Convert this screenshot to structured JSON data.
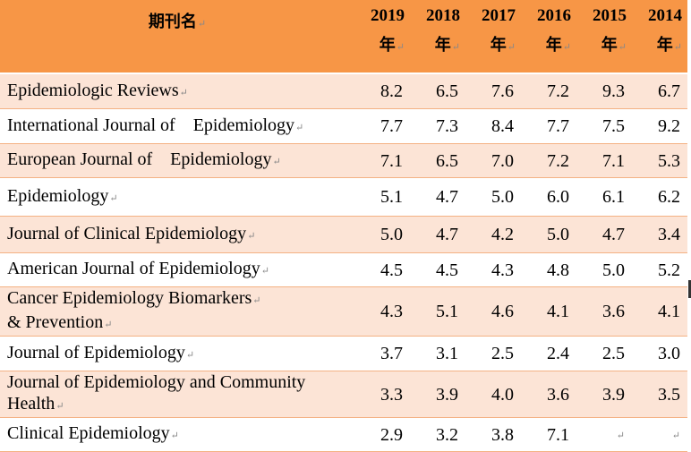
{
  "table": {
    "header": {
      "journal": "期刊名",
      "years": [
        {
          "year": "2019",
          "unit": "年"
        },
        {
          "year": "2018",
          "unit": "年"
        },
        {
          "year": "2017",
          "unit": "年"
        },
        {
          "year": "2016",
          "unit": "年"
        },
        {
          "year": "2015",
          "unit": "年"
        },
        {
          "year": "2014",
          "unit": "年"
        }
      ]
    },
    "rows": [
      {
        "journal": "Epidemiologic Reviews",
        "values": [
          "8.2",
          "6.5",
          "7.6",
          "7.2",
          "9.3",
          "6.7"
        ]
      },
      {
        "journal": "International Journal of    Epidemiology",
        "values": [
          "7.7",
          "7.3",
          "8.4",
          "7.7",
          "7.5",
          "9.2"
        ]
      },
      {
        "journal": "European Journal of    Epidemiology",
        "values": [
          "7.1",
          "6.5",
          "7.0",
          "7.2",
          "7.1",
          "5.3"
        ]
      },
      {
        "journal": "Epidemiology",
        "values": [
          "5.1",
          "4.7",
          "5.0",
          "6.0",
          "6.1",
          "6.2"
        ]
      },
      {
        "journal": "Journal of Clinical Epidemiology",
        "values": [
          "5.0",
          "4.7",
          "4.2",
          "5.0",
          "4.7",
          "3.4"
        ]
      },
      {
        "journal": "American Journal of Epidemiology",
        "values": [
          "4.5",
          "4.5",
          "4.3",
          "4.8",
          "5.0",
          "5.2"
        ]
      },
      {
        "journal_line1": "Cancer Epidemiology Biomarkers",
        "journal_line2": "& Prevention",
        "values": [
          "4.3",
          "5.1",
          "4.6",
          "4.1",
          "3.6",
          "4.1"
        ]
      },
      {
        "journal": "Journal of Epidemiology",
        "values": [
          "3.7",
          "3.1",
          "2.5",
          "2.4",
          "2.5",
          "3.0"
        ]
      },
      {
        "journal_line1": "Journal of Epidemiology and Community",
        "journal_line2": "Health",
        "values": [
          "3.3",
          "3.9",
          "4.0",
          "3.6",
          "3.9",
          "3.5"
        ]
      },
      {
        "journal": "Clinical Epidemiology",
        "values": [
          "2.9",
          "3.2",
          "3.8",
          "7.1",
          "",
          ""
        ]
      }
    ]
  },
  "colors": {
    "header_bg": "#f79646",
    "band_bg": "#fce4d6",
    "row_bg": "#ffffff",
    "row_border": "#f4b183"
  },
  "marks": {
    "paragraph_mark": "↵"
  }
}
